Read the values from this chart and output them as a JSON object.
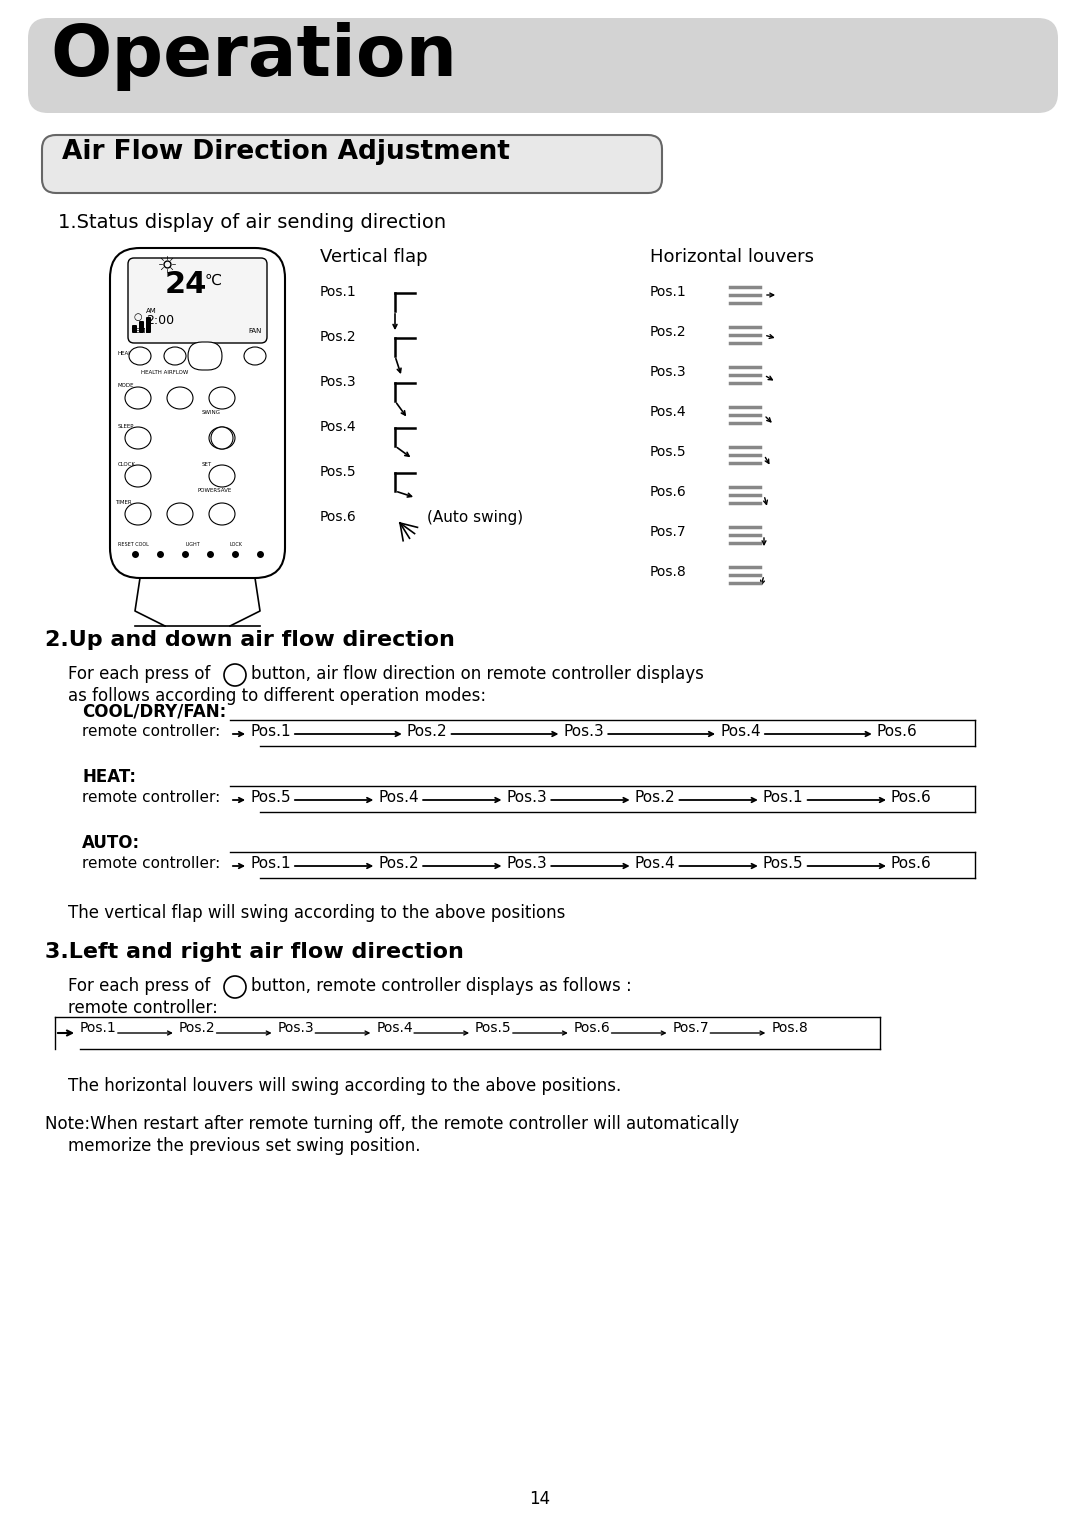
{
  "title": "Operation",
  "section_title": "Air Flow Direction Adjustment",
  "subtitle": "1.Status display of air sending direction",
  "vertical_flap_label": "Vertical flap",
  "horizontal_louvers_label": "Horizontal louvers",
  "vertical_positions": [
    "Pos.1",
    "Pos.2",
    "Pos.3",
    "Pos.4",
    "Pos.5",
    "Pos.6"
  ],
  "horizontal_positions": [
    "Pos.1",
    "Pos.2",
    "Pos.3",
    "Pos.4",
    "Pos.5",
    "Pos.6",
    "Pos.7",
    "Pos.8"
  ],
  "auto_swing_label": "(Auto swing)",
  "section2_title": "2.Up and down air flow direction",
  "section2_text1": "For each press of",
  "section2_text2": "button, air flow direction on remote controller displays",
  "section2_text3": "as follows according to different operation modes:",
  "cool_label": "COOL/DRY/FAN:",
  "cool_text": "remote controller:",
  "cool_positions": [
    "Pos.1",
    "Pos.2",
    "Pos.3",
    "Pos.4",
    "Pos.6"
  ],
  "heat_label": "HEAT:",
  "heat_text": "remote controller:",
  "heat_positions": [
    "Pos.5",
    "Pos.4",
    "Pos.3",
    "Pos.2",
    "Pos.1",
    "Pos.6"
  ],
  "auto_label": "AUTO:",
  "auto_text": "remote controller:",
  "auto_positions": [
    "Pos.1",
    "Pos.2",
    "Pos.3",
    "Pos.4",
    "Pos.5",
    "Pos.6"
  ],
  "swing_note": "The vertical flap will swing according to the above positions",
  "section3_title": "3.Left and right air flow direction",
  "section3_text1": "For each press of",
  "section3_text2": "button, remote controller displays as follows :",
  "section3_text3": "remote controller:",
  "lr_positions": [
    "Pos.1",
    "Pos.2",
    "Pos.3",
    "Pos.4",
    "Pos.5",
    "Pos.6",
    "Pos.7",
    "Pos.8"
  ],
  "horiz_swing_note": "The horizontal louvers will swing according to the above positions.",
  "note_line1": "Note:When restart after remote turning off, the remote controller will automatically",
  "note_line2": "memorize the previous set swing position.",
  "page_number": "14",
  "bg_color": "#ffffff",
  "title_bg_color": "#d3d3d3",
  "section_bg_color": "#e0e0e0",
  "text_color": "#000000"
}
